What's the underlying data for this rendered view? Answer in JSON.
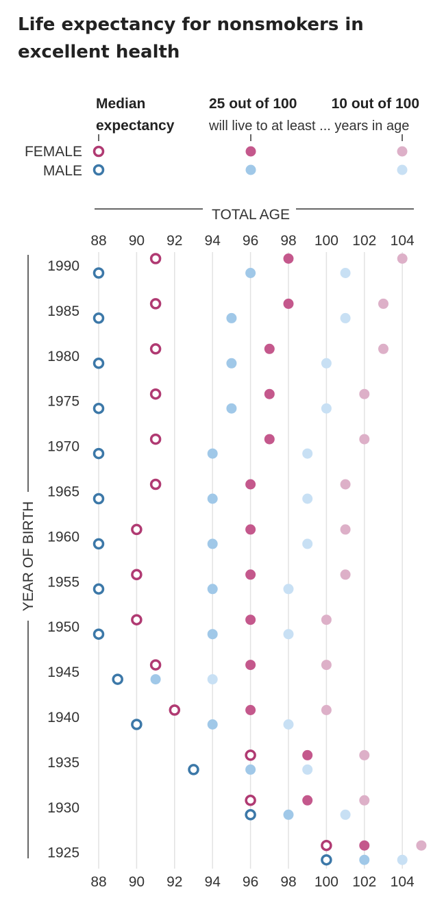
{
  "title": "Life expectancy for nonsmokers in excellent health",
  "legend": {
    "col1": {
      "line1": "Median",
      "line2": "expectancy"
    },
    "col2": {
      "line1": "25 out of 100",
      "line2": "will live to at least ... years in age"
    },
    "col3": {
      "line1": "10 out of 100"
    },
    "female_label": "FEMALE",
    "male_label": "MALE"
  },
  "chart_data": {
    "type": "dumbbell",
    "title": "Life expectancy for nonsmokers in excellent health",
    "xlabel": "TOTAL AGE",
    "ylabel": "YEAR OF BIRTH",
    "xlim": [
      88,
      104
    ],
    "xticks": [
      88,
      90,
      92,
      94,
      96,
      98,
      100,
      102,
      104
    ],
    "colors": {
      "female_dark": "#b03a72",
      "female_mid": "#c4588c",
      "female_light": "#ddb0c8",
      "male_dark": "#3c78a8",
      "male_mid": "#a0c8e8",
      "male_light": "#c8e0f4"
    },
    "categories": [
      "1990",
      "1985",
      "1980",
      "1975",
      "1970",
      "1965",
      "1960",
      "1955",
      "1950",
      "1945",
      "1940",
      "1935",
      "1930",
      "1925"
    ],
    "series": [
      {
        "name": "FEMALE",
        "median": [
          91,
          91,
          91,
          91,
          91,
          91,
          90,
          90,
          90,
          91,
          92,
          96,
          96,
          100
        ],
        "p25": [
          98,
          98,
          97,
          97,
          97,
          96,
          96,
          96,
          96,
          96,
          96,
          99,
          99,
          102
        ],
        "p10": [
          104,
          103,
          103,
          102,
          102,
          101,
          101,
          101,
          100,
          100,
          100,
          102,
          102,
          105
        ]
      },
      {
        "name": "MALE",
        "median": [
          88,
          88,
          88,
          88,
          88,
          88,
          88,
          88,
          88,
          89,
          90,
          93,
          96,
          100
        ],
        "p25": [
          96,
          95,
          95,
          95,
          94,
          94,
          94,
          94,
          94,
          91,
          94,
          96,
          98,
          102
        ],
        "p10": [
          101,
          101,
          100,
          100,
          99,
          99,
          99,
          98,
          98,
          94,
          98,
          99,
          101,
          104
        ]
      }
    ]
  }
}
